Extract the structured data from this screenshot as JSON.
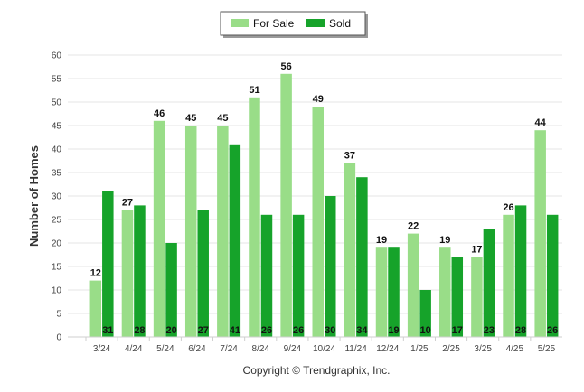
{
  "chart_data": {
    "type": "bar",
    "ylabel": "Number of Homes",
    "xlabel": "",
    "ylim": [
      0,
      60
    ],
    "yticks": [
      0,
      5,
      10,
      15,
      20,
      25,
      30,
      35,
      40,
      45,
      50,
      55,
      60
    ],
    "grid": true,
    "legend_position": "top-center",
    "categories": [
      "3/24",
      "4/24",
      "5/24",
      "6/24",
      "7/24",
      "8/24",
      "9/24",
      "10/24",
      "11/24",
      "12/24",
      "1/25",
      "2/25",
      "3/25",
      "4/25",
      "5/25"
    ],
    "series": [
      {
        "name": "For Sale",
        "color": "#99dd88",
        "values": [
          12,
          27,
          46,
          45,
          45,
          51,
          56,
          49,
          37,
          19,
          22,
          19,
          17,
          26,
          44
        ]
      },
      {
        "name": "Sold",
        "color": "#16a32a",
        "values": [
          31,
          28,
          20,
          27,
          41,
          26,
          26,
          30,
          34,
          19,
          10,
          17,
          23,
          28,
          26
        ]
      }
    ]
  },
  "footer": {
    "copyright": "Copyright © Trendgraphix, Inc."
  }
}
